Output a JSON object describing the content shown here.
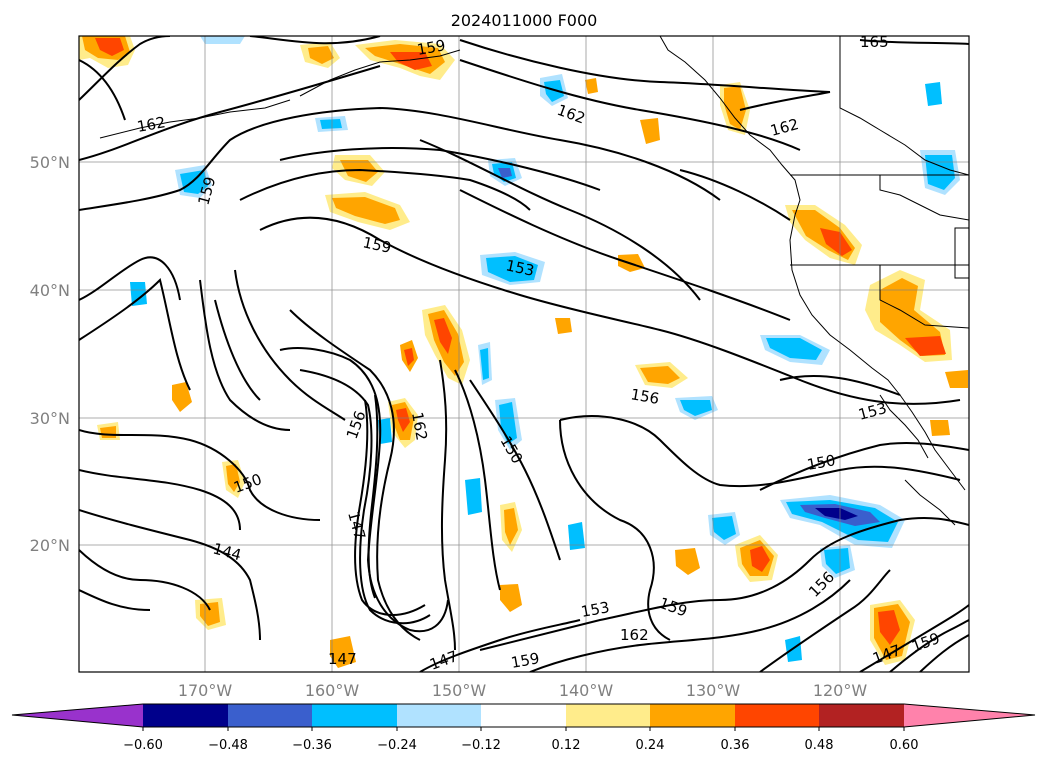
{
  "title": "2024011000 F000",
  "lat_labels": [
    "50°N",
    "40°N",
    "30°N",
    "20°N"
  ],
  "lon_labels": [
    "170°W",
    "160°W",
    "150°W",
    "140°W",
    "130°W",
    "120°W"
  ],
  "colorbar": {
    "ticks": [
      "−0.60",
      "−0.48",
      "−0.36",
      "−0.24",
      "−0.12",
      "0.12",
      "0.24",
      "0.36",
      "0.48",
      "0.60"
    ],
    "colors": [
      "#9932cc",
      "#00008b",
      "#3a5fcd",
      "#00bfff",
      "#b0e2ff",
      "#ffffff",
      "#ffec8b",
      "#ffa500",
      "#ff4500",
      "#b22222",
      "#ff82ab"
    ]
  },
  "contour_labels": [
    "165",
    "159",
    "162",
    "162",
    "162",
    "159",
    "159",
    "153",
    "156",
    "153",
    "150",
    "156",
    "162",
    "150",
    "150",
    "144",
    "147",
    "147",
    "147",
    "159",
    "153",
    "159",
    "162",
    "156",
    "147",
    "159"
  ]
}
